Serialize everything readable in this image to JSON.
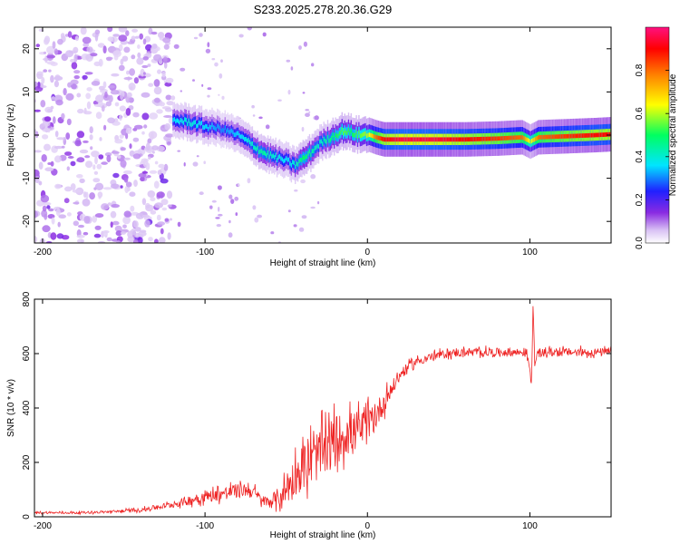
{
  "chart_data": [
    {
      "type": "heatmap",
      "title": "S233.2025.278.20.36.G29",
      "xlabel": "Height of straight line (km)",
      "ylabel": "Frequency (Hz)",
      "xlim": [
        -205,
        150
      ],
      "ylim": [
        -25,
        25
      ],
      "xticks": [
        -200,
        -100,
        0,
        100
      ],
      "yticks": [
        -20,
        -10,
        0,
        10,
        20
      ],
      "colorbar": {
        "label": "Normalized spectral amplitude",
        "range": [
          0,
          1
        ],
        "ticks": [
          0.0,
          0.2,
          0.4,
          0.6,
          0.8
        ],
        "tick_labels": [
          "0.0",
          "0.2",
          "0.4",
          "0.6",
          "0.8"
        ],
        "colors": [
          "#ffffff",
          "#c8a8f0",
          "#8a2be2",
          "#2020ff",
          "#00e5ff",
          "#00ff60",
          "#ffff00",
          "#ff8000",
          "#ff0000",
          "#ff1080"
        ]
      },
      "ridge": {
        "x": [
          -120,
          -110,
          -100,
          -90,
          -80,
          -72,
          -65,
          -58,
          -50,
          -45,
          -40,
          -35,
          -30,
          -25,
          -20,
          -15,
          -10,
          -5,
          0,
          5,
          10,
          20,
          40,
          60,
          80,
          95,
          100,
          105,
          120,
          140,
          150
        ],
        "y": [
          3.5,
          3,
          2,
          1.5,
          0,
          -2,
          -4,
          -5,
          -6,
          -7,
          -5.5,
          -4,
          -2,
          -1,
          0,
          1,
          0.5,
          0,
          0.2,
          -0.5,
          -1,
          -1,
          -1,
          -1,
          -0.8,
          -0.5,
          -1.5,
          -0.5,
          -0.3,
          0,
          0.2
        ],
        "amplitude": [
          0.35,
          0.4,
          0.35,
          0.3,
          0.35,
          0.4,
          0.45,
          0.4,
          0.35,
          0.4,
          0.5,
          0.45,
          0.4,
          0.45,
          0.5,
          0.55,
          0.5,
          0.55,
          0.6,
          0.8,
          0.9,
          0.95,
          0.95,
          0.9,
          0.85,
          0.8,
          0.6,
          0.8,
          0.85,
          0.9,
          0.9
        ]
      },
      "noise_region": {
        "x_range": [
          -205,
          -120
        ],
        "y_range": [
          -25,
          25
        ],
        "amplitude": "low (0.05-0.2)"
      }
    },
    {
      "type": "line",
      "xlabel": "Height of straight line (km)",
      "ylabel": "SNR (10 * v/v)",
      "xlim": [
        -205,
        150
      ],
      "ylim": [
        0,
        800
      ],
      "xticks": [
        -200,
        -100,
        0,
        100
      ],
      "yticks": [
        0,
        200,
        400,
        600,
        800
      ],
      "line_color": "#ee2222",
      "series": [
        {
          "name": "SNR",
          "x": [
            -205,
            -180,
            -160,
            -140,
            -120,
            -110,
            -100,
            -90,
            -80,
            -75,
            -70,
            -65,
            -60,
            -55,
            -50,
            -45,
            -40,
            -35,
            -30,
            -25,
            -20,
            -15,
            -10,
            -5,
            0,
            5,
            10,
            15,
            20,
            25,
            30,
            40,
            50,
            60,
            70,
            80,
            90,
            98,
            100,
            101,
            102,
            103,
            105,
            110,
            120,
            130,
            140,
            150
          ],
          "y": [
            15,
            15,
            18,
            25,
            45,
            60,
            75,
            85,
            95,
            100,
            90,
            60,
            55,
            70,
            100,
            150,
            180,
            200,
            230,
            250,
            280,
            300,
            310,
            320,
            330,
            370,
            420,
            470,
            520,
            550,
            570,
            590,
            600,
            605,
            605,
            605,
            605,
            605,
            540,
            480,
            790,
            560,
            600,
            605,
            605,
            605,
            605,
            605
          ],
          "noise_amplitude": [
            6,
            6,
            8,
            10,
            20,
            30,
            35,
            40,
            45,
            45,
            40,
            30,
            40,
            60,
            90,
            120,
            140,
            160,
            150,
            160,
            150,
            140,
            130,
            120,
            110,
            90,
            70,
            50,
            35,
            30,
            25,
            25,
            25,
            25,
            25,
            25,
            25,
            25,
            10,
            10,
            0,
            10,
            25,
            25,
            25,
            25,
            25,
            25
          ]
        }
      ]
    }
  ]
}
